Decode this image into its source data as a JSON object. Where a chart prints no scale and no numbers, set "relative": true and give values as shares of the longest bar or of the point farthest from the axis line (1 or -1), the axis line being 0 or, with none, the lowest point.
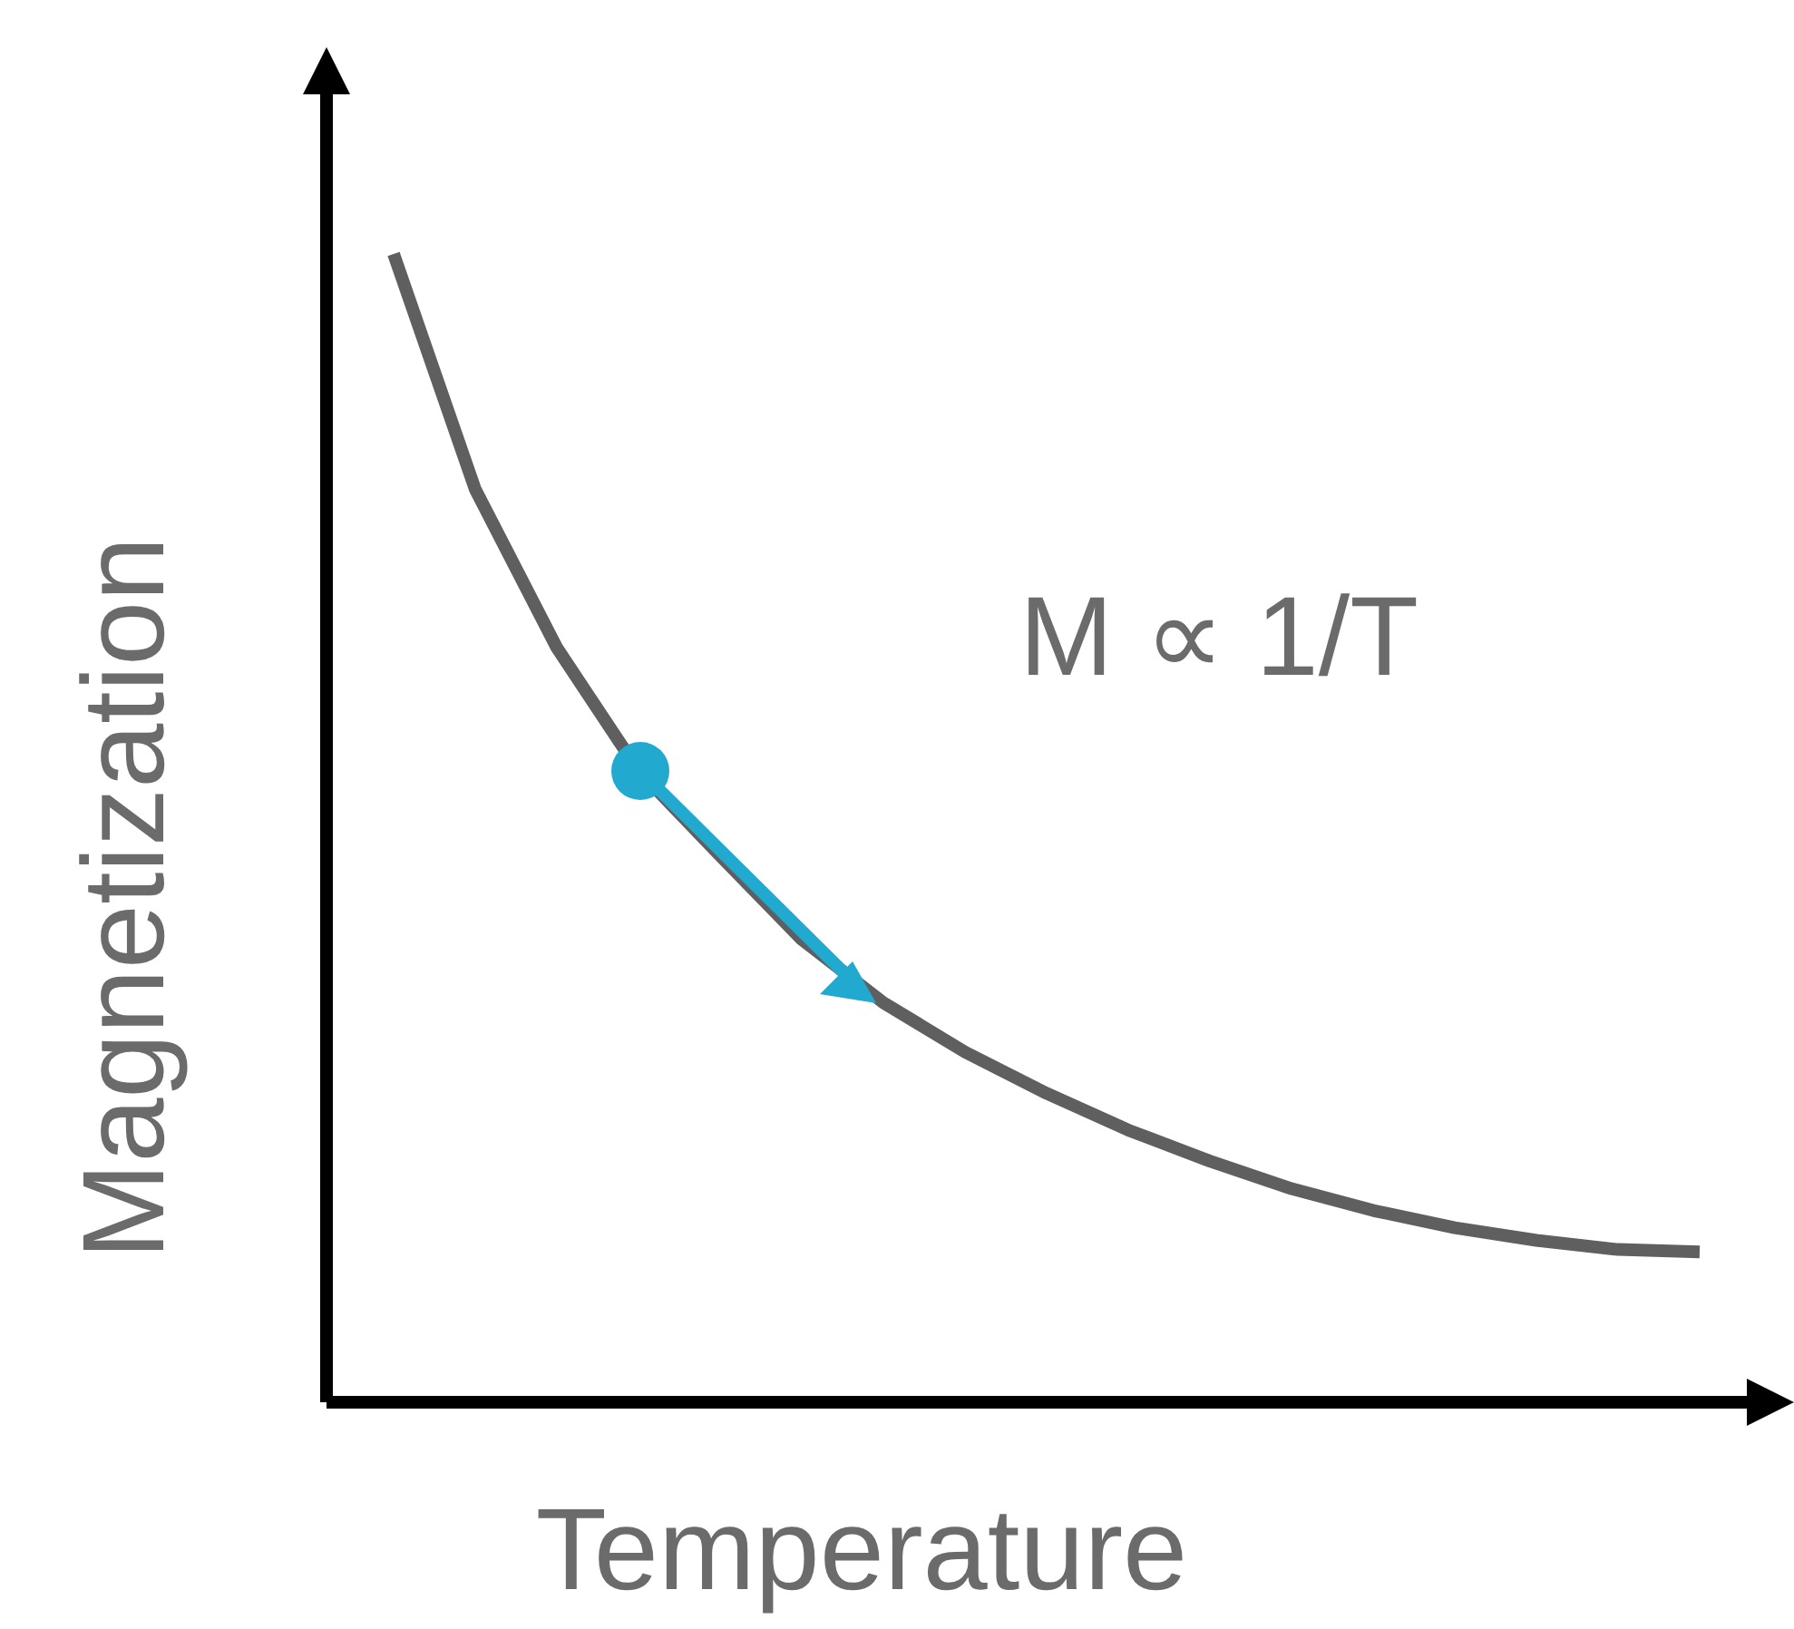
{
  "chart_data": {
    "type": "line",
    "relative": true,
    "xlabel": "Temperature",
    "ylabel": "Magnetization",
    "annotations": [
      "M ∝ 1/T"
    ],
    "categories": [
      null,
      null,
      null,
      null,
      null,
      null,
      null,
      null,
      null,
      null,
      null,
      null,
      null,
      null,
      null,
      null,
      null
    ],
    "series": [
      {
        "color": "#5f5f5f",
        "values": [
          1.0,
          0.795,
          0.657,
          0.55,
          0.476,
          0.403,
          0.348,
          0.305,
          0.269,
          0.237,
          0.21,
          0.186,
          0.167,
          0.152,
          0.141,
          0.133,
          0.131
        ]
      }
    ]
  }
}
